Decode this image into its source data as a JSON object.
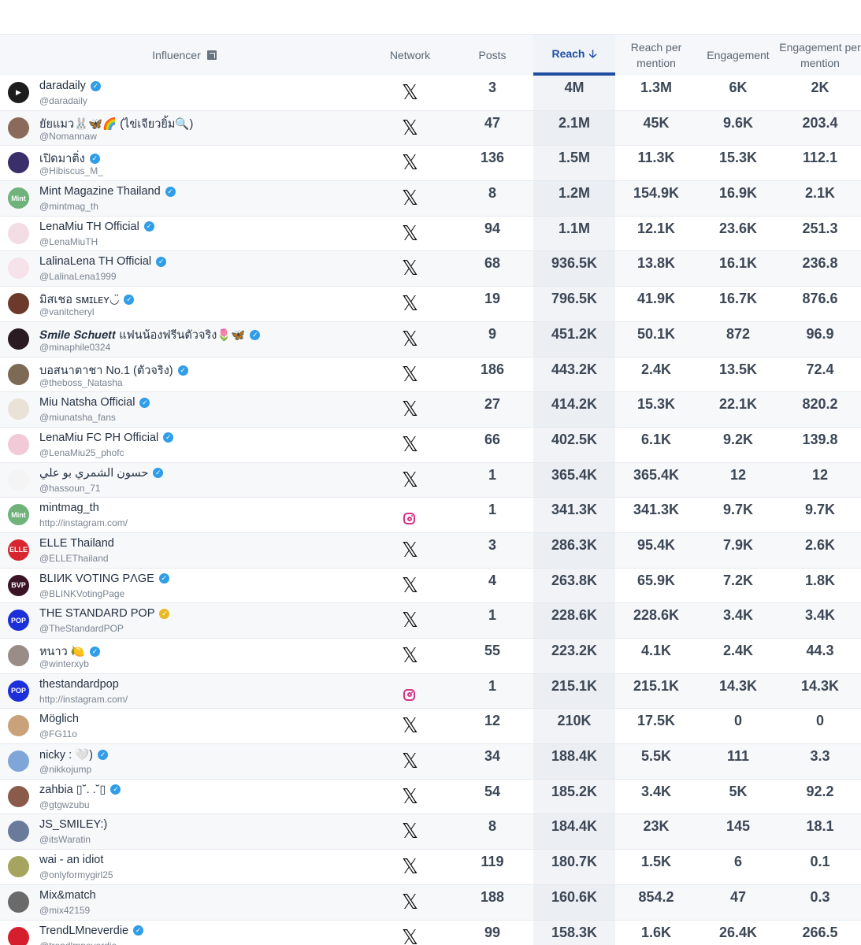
{
  "header": {
    "influencer": "Influencer",
    "network": "Network",
    "posts": "Posts",
    "reach": "Reach",
    "reach_per_mention_1": "Reach per",
    "reach_per_mention_2": "mention",
    "engagement": "Engagement",
    "engagement_per_mention_1": "Engagement per",
    "engagement_per_mention_2": "mention"
  },
  "icons": {
    "x_glyph": "𝕏",
    "verified_glyph": "✓",
    "sort_glyph": "🡣"
  },
  "rows": [
    {
      "name": "daradaily",
      "handle": "@daradaily",
      "verified": "blue",
      "network": "x",
      "posts": "3",
      "reach": "4M",
      "rpm": "1.3M",
      "eng": "6K",
      "epm": "2K",
      "avatar_color": "#1d1d1d",
      "avatar_text": "▶"
    },
    {
      "name": "ยัยแมว🐰🦋🌈 (ไข่เจียวยิ้ม🔍)",
      "handle": "@Nomannaw",
      "verified": "none",
      "network": "x",
      "posts": "47",
      "reach": "2.1M",
      "rpm": "45K",
      "eng": "9.6K",
      "epm": "203.4",
      "avatar_color": "#8a6a5a",
      "avatar_text": ""
    },
    {
      "name": "เปิดมาติ่ง",
      "handle": "@Hibiscus_M_",
      "verified": "blue",
      "network": "x",
      "posts": "136",
      "reach": "1.5M",
      "rpm": "11.3K",
      "eng": "15.3K",
      "epm": "112.1",
      "avatar_color": "#3a2f6a",
      "avatar_text": ""
    },
    {
      "name": "Mint Magazine Thailand",
      "handle": "@mintmag_th",
      "verified": "blue",
      "network": "x",
      "posts": "8",
      "reach": "1.2M",
      "rpm": "154.9K",
      "eng": "16.9K",
      "epm": "2.1K",
      "avatar_color": "#6fb27a",
      "avatar_text": "Mint"
    },
    {
      "name": "LenaMiu TH Official",
      "handle": "@LenaMiuTH",
      "verified": "blue",
      "network": "x",
      "posts": "94",
      "reach": "1.1M",
      "rpm": "12.1K",
      "eng": "23.6K",
      "epm": "251.3",
      "avatar_color": "#f3dde4",
      "avatar_text": ""
    },
    {
      "name": "LalinaLena TH Official",
      "handle": "@LalinaLena1999",
      "verified": "blue",
      "network": "x",
      "posts": "68",
      "reach": "936.5K",
      "rpm": "13.8K",
      "eng": "16.1K",
      "epm": "236.8",
      "avatar_color": "#f6e3ea",
      "avatar_text": ""
    },
    {
      "name": "มิสเชอ sᴍɪʟᴇʏ◡̈",
      "handle": "@vanitcheryl",
      "verified": "blue",
      "network": "x",
      "posts": "19",
      "reach": "796.5K",
      "rpm": "41.9K",
      "eng": "16.7K",
      "epm": "876.6",
      "avatar_color": "#6b3a2a",
      "avatar_text": ""
    },
    {
      "name": "𝑺𝒎𝒊𝒍𝒆 𝑺𝒄𝒉𝒖𝒆𝒕𝒕 แฟนน้องฟรีนตัวจริง🌷🦋",
      "handle": "@minaphile0324",
      "verified": "blue",
      "network": "x",
      "posts": "9",
      "reach": "451.2K",
      "rpm": "50.1K",
      "eng": "872",
      "epm": "96.9",
      "avatar_color": "#2a1a22",
      "avatar_text": ""
    },
    {
      "name": "บอสนาตาชา No.1 (ตัวจริง)",
      "handle": "@theboss_Natasha",
      "verified": "blue",
      "network": "x",
      "posts": "186",
      "reach": "443.2K",
      "rpm": "2.4K",
      "eng": "13.5K",
      "epm": "72.4",
      "avatar_color": "#7c6a55",
      "avatar_text": ""
    },
    {
      "name": "Miu Natsha Official",
      "handle": "@miunatsha_fans",
      "verified": "blue",
      "network": "x",
      "posts": "27",
      "reach": "414.2K",
      "rpm": "15.3K",
      "eng": "22.1K",
      "epm": "820.2",
      "avatar_color": "#e9e2d6",
      "avatar_text": ""
    },
    {
      "name": "LenaMiu FC PH Official",
      "handle": "@LenaMiu25_phofc",
      "verified": "blue",
      "network": "x",
      "posts": "66",
      "reach": "402.5K",
      "rpm": "6.1K",
      "eng": "9.2K",
      "epm": "139.8",
      "avatar_color": "#f2c9d6",
      "avatar_text": ""
    },
    {
      "name": "حسون الشمري بو علي",
      "handle": "@hassoun_71",
      "verified": "blue",
      "network": "x",
      "posts": "1",
      "reach": "365.4K",
      "rpm": "365.4K",
      "eng": "12",
      "epm": "12",
      "avatar_color": "#f4f4f4",
      "avatar_text": ""
    },
    {
      "name": "mintmag_th",
      "handle": "http://instagram.com/",
      "verified": "none",
      "network": "instagram",
      "posts": "1",
      "reach": "341.3K",
      "rpm": "341.3K",
      "eng": "9.7K",
      "epm": "9.7K",
      "avatar_color": "#6fb27a",
      "avatar_text": "Mint"
    },
    {
      "name": "ELLE Thailand",
      "handle": "@ELLEThailand",
      "verified": "none",
      "network": "x",
      "posts": "3",
      "reach": "286.3K",
      "rpm": "95.4K",
      "eng": "7.9K",
      "epm": "2.6K",
      "avatar_color": "#d7262f",
      "avatar_text": "ELLE"
    },
    {
      "name": "BLIИK VOTING PΛGE",
      "handle": "@BLINKVotingPage",
      "verified": "blue",
      "network": "x",
      "posts": "4",
      "reach": "263.8K",
      "rpm": "65.9K",
      "eng": "7.2K",
      "epm": "1.8K",
      "avatar_color": "#3a1424",
      "avatar_text": "BVP"
    },
    {
      "name": "THE STANDARD POP",
      "handle": "@TheStandardPOP",
      "verified": "gold",
      "network": "x",
      "posts": "1",
      "reach": "228.6K",
      "rpm": "228.6K",
      "eng": "3.4K",
      "epm": "3.4K",
      "avatar_color": "#1c2fd8",
      "avatar_text": "POP"
    },
    {
      "name": "หนาว 🍋",
      "handle": "@winterxyb",
      "verified": "blue",
      "network": "x",
      "posts": "55",
      "reach": "223.2K",
      "rpm": "4.1K",
      "eng": "2.4K",
      "epm": "44.3",
      "avatar_color": "#9a8c86",
      "avatar_text": ""
    },
    {
      "name": "thestandardpop",
      "handle": "http://instagram.com/",
      "verified": "none",
      "network": "instagram",
      "posts": "1",
      "reach": "215.1K",
      "rpm": "215.1K",
      "eng": "14.3K",
      "epm": "14.3K",
      "avatar_color": "#1c2fd8",
      "avatar_text": "POP"
    },
    {
      "name": "Möglich",
      "handle": "@FG11o",
      "verified": "none",
      "network": "x",
      "posts": "12",
      "reach": "210K",
      "rpm": "17.5K",
      "eng": "0",
      "epm": "0",
      "avatar_color": "#c9a27a",
      "avatar_text": ""
    },
    {
      "name": "nicky : 🤍)",
      "handle": "@nikkojump",
      "verified": "blue",
      "network": "x",
      "posts": "34",
      "reach": "188.4K",
      "rpm": "5.5K",
      "eng": "111",
      "epm": "3.3",
      "avatar_color": "#7fa6d8",
      "avatar_text": ""
    },
    {
      "name": "zahbia ▯˘. .˘▯",
      "handle": "@gtgwzubu",
      "verified": "blue",
      "network": "x",
      "posts": "54",
      "reach": "185.2K",
      "rpm": "3.4K",
      "eng": "5K",
      "epm": "92.2",
      "avatar_color": "#8a5a4a",
      "avatar_text": ""
    },
    {
      "name": "JS_SMILEY:)",
      "handle": "@itsWaratin",
      "verified": "none",
      "network": "x",
      "posts": "8",
      "reach": "184.4K",
      "rpm": "23K",
      "eng": "145",
      "epm": "18.1",
      "avatar_color": "#6a7a9a",
      "avatar_text": ""
    },
    {
      "name": "wai - an idiot",
      "handle": "@onlyformygirl25",
      "verified": "none",
      "network": "x",
      "posts": "119",
      "reach": "180.7K",
      "rpm": "1.5K",
      "eng": "6",
      "epm": "0.1",
      "avatar_color": "#a5a560",
      "avatar_text": ""
    },
    {
      "name": "Mix&match",
      "handle": "@mix42159",
      "verified": "none",
      "network": "x",
      "posts": "188",
      "reach": "160.6K",
      "rpm": "854.2",
      "eng": "47",
      "epm": "0.3",
      "avatar_color": "#6a6a6a",
      "avatar_text": ""
    },
    {
      "name": "TrendLMneverdie",
      "handle": "@trendlmneverdie",
      "verified": "blue",
      "network": "x",
      "posts": "99",
      "reach": "158.3K",
      "rpm": "1.6K",
      "eng": "26.4K",
      "epm": "266.5",
      "avatar_color": "#d61f2c",
      "avatar_text": ""
    }
  ]
}
